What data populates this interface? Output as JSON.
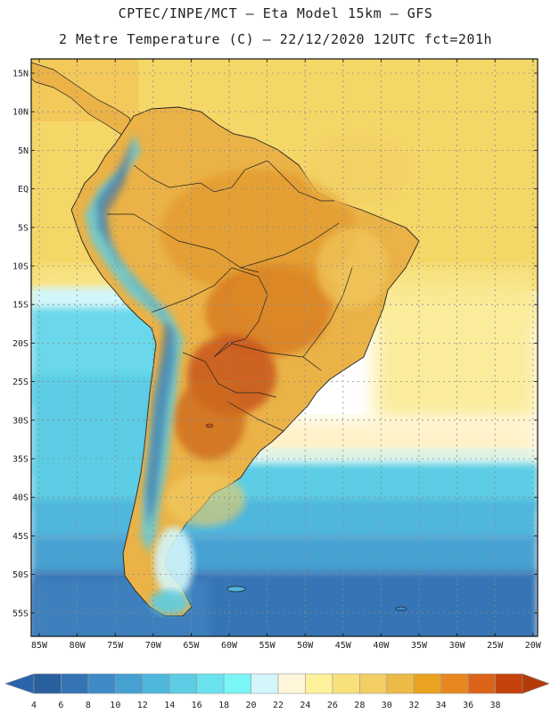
{
  "header": {
    "line1": "CPTEC/INPE/MCT –  Eta Model 15km – GFS",
    "line2": "2 Metre Temperature (C) – 22/12/2020 12UTC fct=201h"
  },
  "map": {
    "lat_labels": [
      "15N",
      "10N",
      "5N",
      "EQ",
      "5S",
      "10S",
      "15S",
      "20S",
      "25S",
      "30S",
      "35S",
      "40S",
      "45S",
      "50S",
      "55S"
    ],
    "lon_labels": [
      "85W",
      "80W",
      "75W",
      "70W",
      "65W",
      "60W",
      "55W",
      "50W",
      "45W",
      "40W",
      "35W",
      "30W",
      "25W",
      "20W"
    ]
  },
  "legend": {
    "colors": [
      "#2a5f9e",
      "#3474b5",
      "#3e8bc7",
      "#46a1d2",
      "#4fb6dc",
      "#5ccde5",
      "#6ae2ee",
      "#7af6f7",
      "#d2f6fa",
      "#fff6da",
      "#fdf29b",
      "#f8e07b",
      "#f2ce64",
      "#ecba47",
      "#eba220",
      "#e8871f",
      "#dc641a",
      "#c5420c"
    ],
    "labels": [
      "4",
      "6",
      "8",
      "10",
      "12",
      "14",
      "16",
      "18",
      "20",
      "22",
      "24",
      "26",
      "28",
      "30",
      "32",
      "34",
      "36",
      "38"
    ],
    "low_arrow_color": "#2a64aa",
    "high_arrow_color": "#b53a0a"
  }
}
